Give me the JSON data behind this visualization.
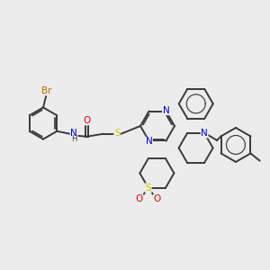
{
  "bg_color": "#ececec",
  "atom_colors": {
    "bond": "#3a3a3a",
    "N": "#0000ee",
    "O": "#ee0000",
    "S": "#cccc00",
    "Br": "#bb6600",
    "H": "#3a3a3a"
  },
  "lw": 1.4,
  "fontsize": 7.5
}
